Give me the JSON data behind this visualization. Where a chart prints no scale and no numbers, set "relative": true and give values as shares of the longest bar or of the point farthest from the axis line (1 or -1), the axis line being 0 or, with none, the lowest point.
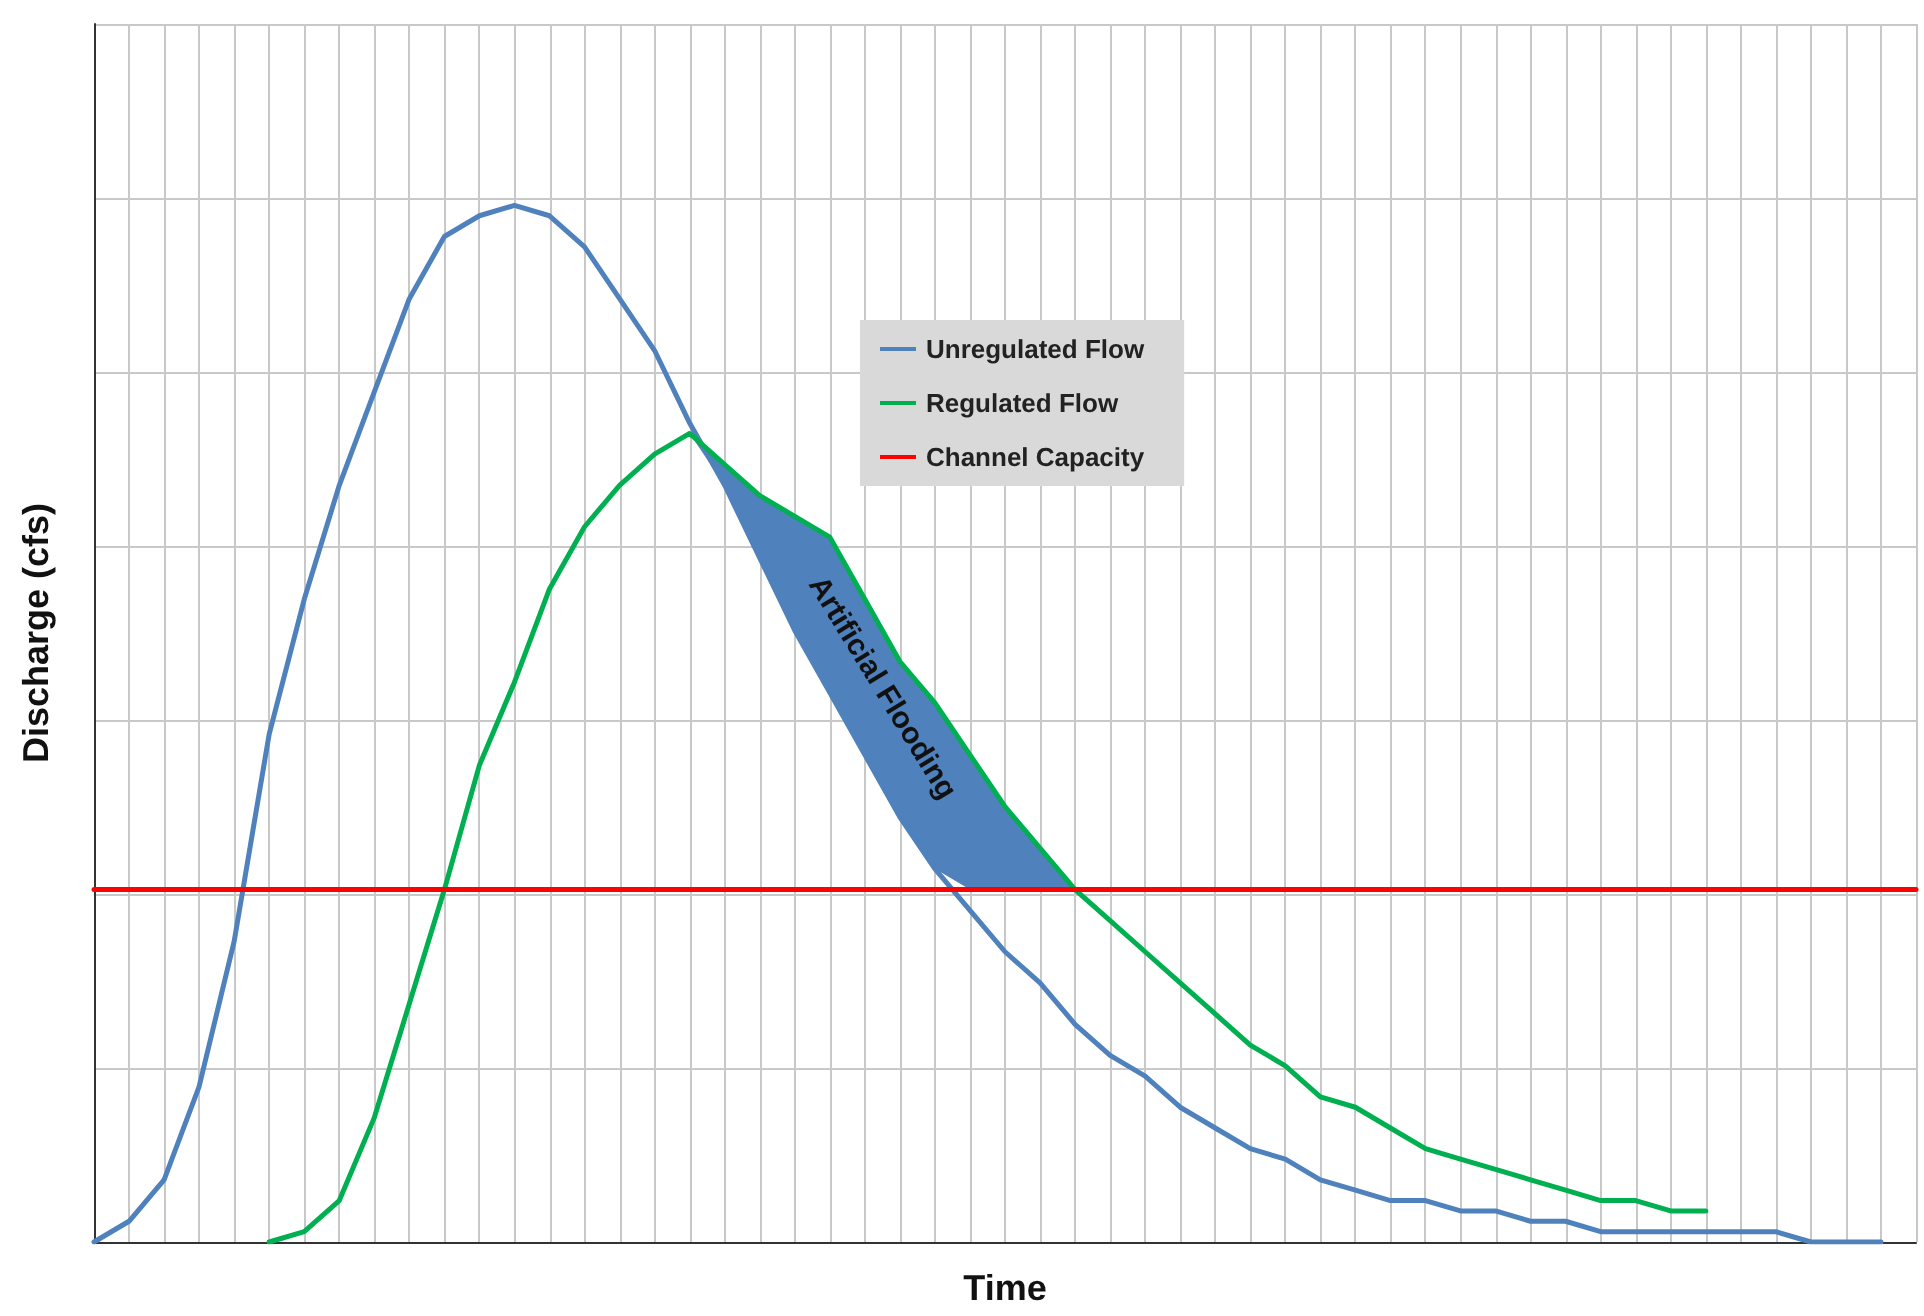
{
  "chart_data": {
    "type": "line",
    "relative": true,
    "xlabel": "Time",
    "ylabel": "Discharge (cfs)",
    "categories": [
      null,
      null,
      null,
      null,
      null,
      null,
      null,
      null,
      null,
      null,
      null,
      null,
      null,
      null,
      null,
      null,
      null,
      null,
      null,
      null,
      null,
      null,
      null,
      null,
      null,
      null,
      null,
      null,
      null,
      null,
      null,
      null,
      null,
      null,
      null,
      null,
      null,
      null,
      null,
      null,
      null,
      null,
      null,
      null,
      null,
      null,
      null,
      null,
      null,
      null,
      null,
      null,
      null
    ],
    "series": [
      {
        "name": "Unregulated Flow",
        "color": "#4f81bd",
        "values": [
          0,
          0.02,
          0.06,
          0.15,
          0.29,
          0.49,
          0.62,
          0.73,
          0.82,
          0.91,
          0.97,
          0.99,
          1,
          0.99,
          0.96,
          0.91,
          0.86,
          0.79,
          0.73,
          0.66,
          0.59,
          0.53,
          0.47,
          0.41,
          0.36,
          0.32,
          0.28,
          0.25,
          0.21,
          0.18,
          0.16,
          0.13,
          0.11,
          0.09,
          0.08,
          0.06,
          0.05,
          0.04,
          0.04,
          0.03,
          0.03,
          0.02,
          0.02,
          0.01,
          0.01,
          0.01,
          0.01,
          0.01,
          0.01,
          0,
          0,
          0,
          null
        ]
      },
      {
        "name": "Regulated Flow",
        "color": "#00b050",
        "values": [
          null,
          null,
          null,
          null,
          null,
          0,
          0.01,
          0.04,
          0.12,
          0.23,
          0.34,
          0.46,
          0.54,
          0.63,
          0.69,
          0.73,
          0.76,
          0.78,
          0.75,
          0.72,
          0.7,
          0.68,
          0.62,
          0.56,
          0.52,
          0.47,
          0.42,
          0.38,
          0.34,
          0.31,
          0.28,
          0.25,
          0.22,
          0.19,
          0.17,
          0.14,
          0.13,
          0.11,
          0.09,
          0.08,
          0.07,
          0.06,
          0.05,
          0.04,
          0.04,
          0.03,
          0.03,
          null,
          null,
          null,
          null,
          null,
          null
        ],
        "lower": [
          null,
          null,
          null,
          null,
          null,
          null,
          null,
          null,
          null,
          null,
          null,
          null,
          null,
          null,
          null,
          null,
          null,
          0.78,
          0.73,
          0.66,
          0.59,
          0.53,
          0.47,
          0.41,
          0.36,
          0.34,
          0.34,
          0.34,
          0.34,
          null,
          null,
          null,
          null,
          null,
          null,
          null,
          null,
          null,
          null,
          null,
          null,
          null,
          null,
          null,
          null,
          null,
          null,
          null,
          null,
          null,
          null,
          null,
          null
        ],
        "upper": [
          null,
          null,
          null,
          null,
          null,
          null,
          null,
          null,
          null,
          null,
          null,
          null,
          null,
          null,
          null,
          null,
          null,
          0.78,
          0.75,
          0.72,
          0.7,
          0.68,
          0.62,
          0.56,
          0.52,
          0.47,
          0.42,
          0.38,
          0.34,
          null,
          null,
          null,
          null,
          null,
          null,
          null,
          null,
          null,
          null,
          null,
          null,
          null,
          null,
          null,
          null,
          null,
          null,
          null,
          null,
          null,
          null,
          null,
          null
        ]
      },
      {
        "name": "Channel Capacity",
        "color": "#ff0000",
        "values": [
          0.34,
          0.34,
          0.34,
          0.34,
          0.34,
          0.34,
          0.34,
          0.34,
          0.34,
          0.34,
          0.34,
          0.34,
          0.34,
          0.34,
          0.34,
          0.34,
          0.34,
          0.34,
          0.34,
          0.34,
          0.34,
          0.34,
          0.34,
          0.34,
          0.34,
          0.34,
          0.34,
          0.34,
          0.34,
          0.34,
          0.34,
          0.34,
          0.34,
          0.34,
          0.34,
          0.34,
          0.34,
          0.34,
          0.34,
          0.34,
          0.34,
          0.34,
          0.34,
          0.34,
          0.34,
          0.34,
          0.34,
          0.34,
          0.34,
          0.34,
          0.34,
          0.34,
          0.34
        ]
      }
    ],
    "annotations": [
      "Artificial Flooding"
    ],
    "grid": true,
    "legend": "top",
    "marker": "none",
    "line_style": "solid"
  }
}
